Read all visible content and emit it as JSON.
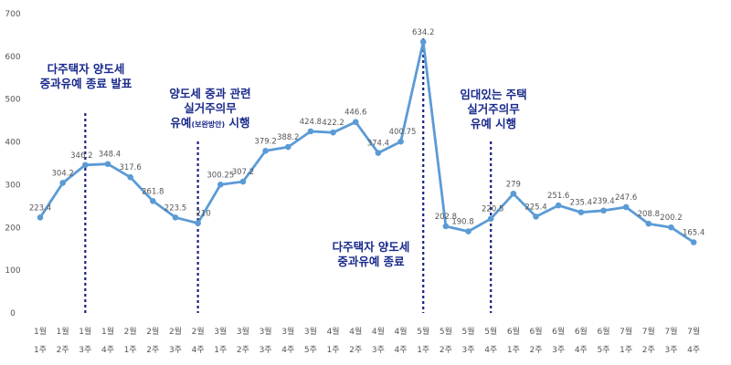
{
  "chart_data": {
    "type": "line",
    "title": "",
    "xlabel": "",
    "ylabel": "",
    "ylim": [
      0,
      700
    ],
    "yticks": [
      0,
      100,
      200,
      300,
      400,
      500,
      600,
      700
    ],
    "grid": false,
    "legend": "none",
    "line_color": "#5b9bd5",
    "marker_color": "#5b9bd5",
    "marker_line_color": "#1a237e",
    "annotation_color": "#1a2a8c",
    "categories": [
      {
        "month": "1월",
        "week": "1주"
      },
      {
        "month": "1월",
        "week": "2주"
      },
      {
        "month": "1월",
        "week": "3주"
      },
      {
        "month": "1월",
        "week": "4주"
      },
      {
        "month": "2월",
        "week": "1주"
      },
      {
        "month": "2월",
        "week": "2주"
      },
      {
        "month": "2월",
        "week": "3주"
      },
      {
        "month": "2월",
        "week": "4주"
      },
      {
        "month": "3월",
        "week": "1주"
      },
      {
        "month": "3월",
        "week": "2주"
      },
      {
        "month": "3월",
        "week": "3주"
      },
      {
        "month": "3월",
        "week": "4주"
      },
      {
        "month": "3월",
        "week": "5주"
      },
      {
        "month": "4월",
        "week": "1주"
      },
      {
        "month": "4월",
        "week": "2주"
      },
      {
        "month": "4월",
        "week": "3주"
      },
      {
        "month": "4월",
        "week": "4주"
      },
      {
        "month": "5월",
        "week": "1주"
      },
      {
        "month": "5월",
        "week": "2주"
      },
      {
        "month": "5월",
        "week": "3주"
      },
      {
        "month": "5월",
        "week": "4주"
      },
      {
        "month": "6월",
        "week": "1주"
      },
      {
        "month": "6월",
        "week": "2주"
      },
      {
        "month": "6월",
        "week": "3주"
      },
      {
        "month": "6월",
        "week": "4주"
      },
      {
        "month": "6월",
        "week": "5주"
      },
      {
        "month": "7월",
        "week": "1주"
      },
      {
        "month": "7월",
        "week": "2주"
      },
      {
        "month": "7월",
        "week": "3주"
      },
      {
        "month": "7월",
        "week": "4주"
      }
    ],
    "values": [
      223.4,
      304.2,
      346.2,
      348.4,
      317.6,
      261.8,
      223.5,
      210,
      300.25,
      307.2,
      379.2,
      388.2,
      424.8,
      422.2,
      446.6,
      374.4,
      400.75,
      634.2,
      202.8,
      190.8,
      220.5,
      279,
      225.4,
      251.6,
      235.4,
      239.4,
      247.6,
      208.8,
      200.2,
      165.4
    ],
    "value_labels": [
      "223.4",
      "304.2",
      "346.2",
      "348.4",
      "317.6",
      "261.8",
      "223.5",
      "210",
      "300.25",
      "307.2",
      "379.2",
      "388.2",
      "424.8",
      "422.2",
      "446.6",
      "374.4",
      "400.75",
      "634.2",
      "202.8",
      "190.8",
      "220.5",
      "279",
      "225.4",
      "251.6",
      "235.4",
      "239.4",
      "247.6",
      "208.8",
      "200.2",
      "165.4"
    ],
    "markers": [
      {
        "index": 2,
        "text": [
          "다주택자 양도세",
          "중과유예 종료 발표"
        ]
      },
      {
        "index": 7,
        "text": [
          "양도세 중과 관련",
          "실거주의무",
          "유예(보완방안) 시행"
        ]
      },
      {
        "index": 17,
        "text": [
          "다주택자 양도세",
          "중과유예 종료"
        ]
      },
      {
        "index": 20,
        "text": [
          "임대있는 주택",
          "실거주의무",
          "유예 시행"
        ]
      }
    ]
  }
}
